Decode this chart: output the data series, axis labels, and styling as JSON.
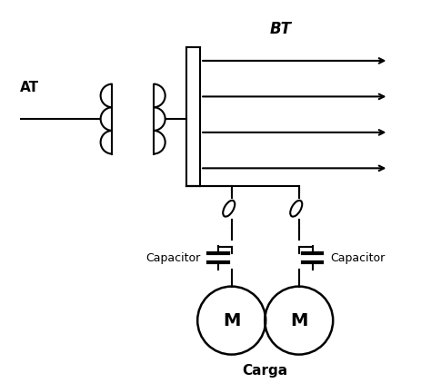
{
  "bg_color": "#ffffff",
  "line_color": "#000000",
  "label_AT": "AT",
  "label_BT": "BT",
  "label_Capacitor": "Capacitor",
  "label_Carga": "Carga",
  "label_M": "M",
  "figsize": [
    4.64,
    4.22
  ],
  "dpi": 100
}
